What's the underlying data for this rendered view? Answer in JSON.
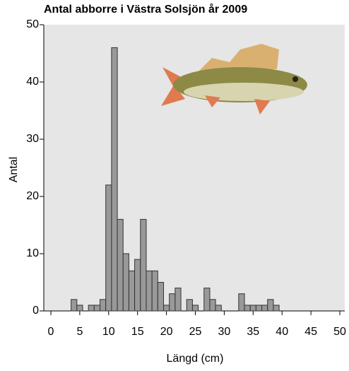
{
  "chart_data": {
    "type": "histogram",
    "title": "Antal abborre i Västra Solsjön år 2009",
    "x_label": "Längd (cm)",
    "y_label": "Antal",
    "bins": [
      3.5,
      4.5,
      5.5,
      6.5,
      7.5,
      8.5,
      9.5,
      10.5,
      11.5,
      12.5,
      13.5,
      14.5,
      15.5,
      16.5,
      17.5,
      18.5,
      19.5,
      20.5,
      21.5,
      22.5,
      23.5,
      24.5,
      25.5,
      26.5,
      27.5,
      28.5,
      29.5,
      30.5,
      31.5,
      32.5,
      33.5,
      34.5,
      35.5,
      36.5,
      37.5,
      38.5,
      39.5
    ],
    "values": [
      2,
      1,
      0,
      1,
      1,
      2,
      22,
      46,
      16,
      10,
      7,
      9,
      16,
      7,
      7,
      5,
      1,
      3,
      4,
      0,
      2,
      1,
      0,
      4,
      2,
      1,
      0,
      0,
      0,
      3,
      1,
      1,
      1,
      1,
      2,
      1
    ],
    "color": "#999999",
    "xlim": [
      0,
      50
    ],
    "xticks": [
      0,
      5,
      10,
      15,
      20,
      25,
      30,
      35,
      40,
      45,
      50
    ],
    "ylim": [
      0,
      50
    ],
    "yticks": [
      0,
      10,
      20,
      30,
      40,
      50
    ]
  }
}
